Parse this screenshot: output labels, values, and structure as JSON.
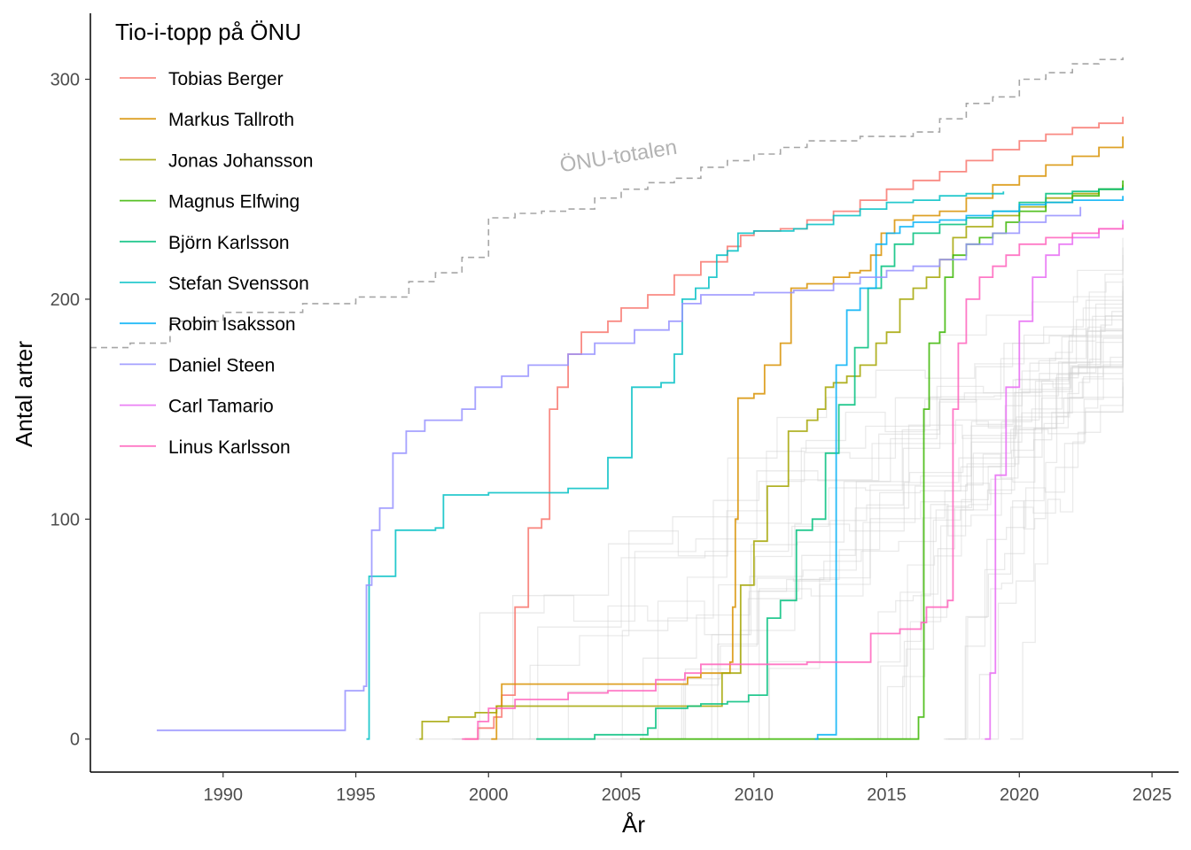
{
  "chart_data": {
    "type": "line",
    "title": "",
    "xlabel": "År",
    "ylabel": "Antal arter",
    "xlim": [
      1985,
      2026
    ],
    "ylim": [
      -15,
      330
    ],
    "x_ticks": [
      1990,
      1995,
      2000,
      2005,
      2010,
      2015,
      2020,
      2025
    ],
    "y_ticks": [
      0,
      100,
      200,
      300
    ],
    "grid": false,
    "legend": {
      "title": "Tio-i-topp på ÖNU",
      "position": "top-left"
    },
    "total": {
      "label": "ÖNU-totalen",
      "color": "#a6a6a6",
      "points": [
        [
          1985,
          178
        ],
        [
          1986.5,
          180
        ],
        [
          1988,
          190
        ],
        [
          1990,
          194
        ],
        [
          1993,
          198
        ],
        [
          1995,
          201
        ],
        [
          1997,
          208
        ],
        [
          1998,
          212
        ],
        [
          1999,
          219
        ],
        [
          2000,
          237
        ],
        [
          2001,
          239
        ],
        [
          2002,
          240
        ],
        [
          2003,
          241
        ],
        [
          2004,
          246
        ],
        [
          2005,
          250
        ],
        [
          2006,
          253
        ],
        [
          2007,
          255
        ],
        [
          2008,
          260
        ],
        [
          2009,
          263
        ],
        [
          2010,
          266
        ],
        [
          2011,
          269
        ],
        [
          2012,
          272
        ],
        [
          2014,
          274
        ],
        [
          2016,
          276
        ],
        [
          2017,
          282
        ],
        [
          2018,
          289
        ],
        [
          2019,
          292
        ],
        [
          2020,
          300
        ],
        [
          2021,
          303
        ],
        [
          2022,
          307
        ],
        [
          2023,
          309
        ],
        [
          2023.9,
          310
        ]
      ]
    },
    "series": [
      {
        "name": "Tobias Berger",
        "color": "#F8766D",
        "points": [
          [
            1999.1,
            0
          ],
          [
            1999.6,
            5
          ],
          [
            2000.2,
            10
          ],
          [
            2000.5,
            20
          ],
          [
            2001,
            60
          ],
          [
            2001.5,
            96
          ],
          [
            2002,
            100
          ],
          [
            2002.3,
            150
          ],
          [
            2002.6,
            160
          ],
          [
            2003,
            175
          ],
          [
            2003.5,
            185
          ],
          [
            2004.5,
            190
          ],
          [
            2005,
            196
          ],
          [
            2006,
            202
          ],
          [
            2007,
            211
          ],
          [
            2008,
            217
          ],
          [
            2009,
            224
          ],
          [
            2009.5,
            229
          ],
          [
            2010,
            231
          ],
          [
            2011,
            232
          ],
          [
            2012,
            236
          ],
          [
            2013,
            240
          ],
          [
            2014,
            245
          ],
          [
            2015,
            250
          ],
          [
            2016,
            254
          ],
          [
            2017,
            258
          ],
          [
            2018,
            263
          ],
          [
            2019,
            268
          ],
          [
            2020,
            272
          ],
          [
            2021,
            275
          ],
          [
            2022,
            278
          ],
          [
            2023,
            280
          ],
          [
            2023.9,
            283
          ]
        ]
      },
      {
        "name": "Markus Tallroth",
        "color": "#D89000",
        "points": [
          [
            2000.1,
            0
          ],
          [
            2000.3,
            15
          ],
          [
            2000.5,
            25
          ],
          [
            2003,
            25
          ],
          [
            2005,
            25
          ],
          [
            2007.5,
            28
          ],
          [
            2008,
            30
          ],
          [
            2008.6,
            30
          ],
          [
            2009.1,
            35
          ],
          [
            2009.2,
            60
          ],
          [
            2009.3,
            100
          ],
          [
            2009.4,
            155
          ],
          [
            2010,
            157
          ],
          [
            2010.4,
            170
          ],
          [
            2011,
            180
          ],
          [
            2011.4,
            205
          ],
          [
            2012,
            207
          ],
          [
            2013,
            210
          ],
          [
            2013.6,
            212
          ],
          [
            2014,
            213
          ],
          [
            2014.4,
            220
          ],
          [
            2014.8,
            230
          ],
          [
            2015.3,
            236
          ],
          [
            2016,
            238
          ],
          [
            2017,
            240
          ],
          [
            2018,
            246
          ],
          [
            2019,
            252
          ],
          [
            2020,
            256
          ],
          [
            2021,
            261
          ],
          [
            2022,
            265
          ],
          [
            2023,
            269
          ],
          [
            2023.9,
            274
          ]
        ]
      },
      {
        "name": "Jonas Johansson",
        "color": "#A3A500",
        "points": [
          [
            1997.4,
            0
          ],
          [
            1997.5,
            8
          ],
          [
            1998.5,
            10
          ],
          [
            1999.5,
            12
          ],
          [
            2000.3,
            15
          ],
          [
            2008.8,
            30
          ],
          [
            2009.5,
            70
          ],
          [
            2010,
            90
          ],
          [
            2010.5,
            115
          ],
          [
            2011.3,
            140
          ],
          [
            2012,
            145
          ],
          [
            2012.4,
            150
          ],
          [
            2012.7,
            160
          ],
          [
            2013,
            162
          ],
          [
            2013.5,
            165
          ],
          [
            2014,
            170
          ],
          [
            2014.6,
            180
          ],
          [
            2015,
            185
          ],
          [
            2015.5,
            200
          ],
          [
            2016,
            205
          ],
          [
            2016.5,
            210
          ],
          [
            2017,
            218
          ],
          [
            2017.5,
            228
          ],
          [
            2018,
            233
          ],
          [
            2019,
            238
          ],
          [
            2020,
            242
          ],
          [
            2021,
            246
          ],
          [
            2022,
            248
          ],
          [
            2023,
            250
          ],
          [
            2023.9,
            252
          ]
        ]
      },
      {
        "name": "Magnus Elfwing",
        "color": "#39B600",
        "points": [
          [
            2005.7,
            0
          ],
          [
            2016,
            0
          ],
          [
            2016.2,
            10
          ],
          [
            2016.4,
            150
          ],
          [
            2016.6,
            180
          ],
          [
            2017,
            185
          ],
          [
            2017.2,
            210
          ],
          [
            2017.5,
            220
          ],
          [
            2018,
            225
          ],
          [
            2018.5,
            228
          ],
          [
            2019,
            230
          ],
          [
            2019.5,
            235
          ],
          [
            2020,
            240
          ],
          [
            2021,
            244
          ],
          [
            2022,
            247
          ],
          [
            2023,
            250
          ],
          [
            2023.9,
            254
          ]
        ]
      },
      {
        "name": "Björn Karlsson",
        "color": "#00BF7D",
        "points": [
          [
            2001.8,
            0
          ],
          [
            2004,
            2
          ],
          [
            2006,
            5
          ],
          [
            2006.3,
            14
          ],
          [
            2007.5,
            15
          ],
          [
            2008,
            16
          ],
          [
            2009,
            17
          ],
          [
            2009.8,
            20
          ],
          [
            2010.5,
            55
          ],
          [
            2011,
            63
          ],
          [
            2011.6,
            95
          ],
          [
            2012.2,
            100
          ],
          [
            2012.7,
            130
          ],
          [
            2013.2,
            152
          ],
          [
            2013.8,
            178
          ],
          [
            2014.3,
            205
          ],
          [
            2014.8,
            215
          ],
          [
            2015.3,
            225
          ],
          [
            2016,
            230
          ],
          [
            2017,
            234
          ],
          [
            2018,
            237
          ],
          [
            2019,
            240
          ],
          [
            2020,
            244
          ],
          [
            2021,
            248
          ],
          [
            2022,
            249
          ],
          [
            2023,
            250
          ],
          [
            2023.9,
            251
          ]
        ]
      },
      {
        "name": "Stefan Svensson",
        "color": "#00BFC4",
        "points": [
          [
            1995.4,
            0
          ],
          [
            1995.5,
            74
          ],
          [
            1996.5,
            95
          ],
          [
            1998,
            96
          ],
          [
            1998.3,
            111
          ],
          [
            2000,
            112
          ],
          [
            2003,
            114
          ],
          [
            2004.3,
            114
          ],
          [
            2004.5,
            128
          ],
          [
            2005.2,
            128
          ],
          [
            2005.4,
            160
          ],
          [
            2006.5,
            162
          ],
          [
            2007,
            175
          ],
          [
            2007.3,
            200
          ],
          [
            2007.8,
            205
          ],
          [
            2008.3,
            210
          ],
          [
            2008.6,
            220
          ],
          [
            2009,
            222
          ],
          [
            2009.4,
            230
          ],
          [
            2010,
            231
          ],
          [
            2011.5,
            232
          ],
          [
            2012,
            234
          ],
          [
            2013,
            238
          ],
          [
            2014,
            241
          ],
          [
            2015,
            244
          ],
          [
            2016,
            245
          ],
          [
            2017,
            247
          ],
          [
            2018,
            248
          ],
          [
            2019.4,
            249
          ]
        ]
      },
      {
        "name": "Robin Isaksson",
        "color": "#00B0F6",
        "points": [
          [
            2012.3,
            0
          ],
          [
            2012.4,
            2
          ],
          [
            2013.1,
            170
          ],
          [
            2013.5,
            195
          ],
          [
            2014,
            205
          ],
          [
            2014.6,
            225
          ],
          [
            2015,
            230
          ],
          [
            2015.5,
            233
          ],
          [
            2016,
            235
          ],
          [
            2017,
            236
          ],
          [
            2018,
            238
          ],
          [
            2019,
            240
          ],
          [
            2020,
            243
          ],
          [
            2021,
            244
          ],
          [
            2022,
            245
          ],
          [
            2023.9,
            247
          ]
        ]
      },
      {
        "name": "Daniel Steen",
        "color": "#9590FF",
        "points": [
          [
            1987.5,
            4
          ],
          [
            1994.5,
            4
          ],
          [
            1994.6,
            22
          ],
          [
            1995.3,
            24
          ],
          [
            1995.4,
            70
          ],
          [
            1995.6,
            95
          ],
          [
            1995.9,
            105
          ],
          [
            1996.4,
            130
          ],
          [
            1996.9,
            140
          ],
          [
            1997.6,
            145
          ],
          [
            1999,
            150
          ],
          [
            1999.5,
            160
          ],
          [
            2000.5,
            165
          ],
          [
            2001.5,
            170
          ],
          [
            2003,
            175
          ],
          [
            2004,
            180
          ],
          [
            2005.5,
            186
          ],
          [
            2006.8,
            190
          ],
          [
            2007.3,
            198
          ],
          [
            2008,
            202
          ],
          [
            2010,
            203
          ],
          [
            2011.5,
            204
          ],
          [
            2013,
            207
          ],
          [
            2014,
            210
          ],
          [
            2015,
            213
          ],
          [
            2016,
            215
          ],
          [
            2017,
            218
          ],
          [
            2018,
            225
          ],
          [
            2019,
            230
          ],
          [
            2020,
            235
          ],
          [
            2021,
            238
          ],
          [
            2022.3,
            242
          ]
        ]
      },
      {
        "name": "Carl Tamario",
        "color": "#E76BF3",
        "points": [
          [
            2018.7,
            0
          ],
          [
            2018.9,
            30
          ],
          [
            2019.1,
            120
          ],
          [
            2019.5,
            160
          ],
          [
            2020,
            190
          ],
          [
            2020.5,
            210
          ],
          [
            2021,
            220
          ],
          [
            2021.5,
            225
          ],
          [
            2022,
            228
          ],
          [
            2023,
            232
          ],
          [
            2023.9,
            236
          ]
        ]
      },
      {
        "name": "Linus Karlsson",
        "color": "#FF62BC",
        "points": [
          [
            1999,
            0
          ],
          [
            1999.5,
            0
          ],
          [
            1999.6,
            8
          ],
          [
            2000,
            14
          ],
          [
            2001,
            18
          ],
          [
            2003,
            21
          ],
          [
            2004.5,
            22
          ],
          [
            2006,
            22
          ],
          [
            2006.3,
            27
          ],
          [
            2007.4,
            30
          ],
          [
            2008,
            34
          ],
          [
            2010,
            34
          ],
          [
            2012,
            35
          ],
          [
            2014,
            35
          ],
          [
            2014.4,
            48
          ],
          [
            2015.5,
            50
          ],
          [
            2016.3,
            53
          ],
          [
            2016.5,
            60
          ],
          [
            2017.3,
            63
          ],
          [
            2017.5,
            150
          ],
          [
            2017.7,
            180
          ],
          [
            2018,
            200
          ],
          [
            2018.5,
            210
          ],
          [
            2019,
            215
          ],
          [
            2019.5,
            220
          ],
          [
            2020,
            225
          ],
          [
            2021,
            228
          ],
          [
            2022,
            230
          ],
          [
            2023,
            232
          ],
          [
            2023.9,
            234
          ]
        ]
      }
    ]
  }
}
